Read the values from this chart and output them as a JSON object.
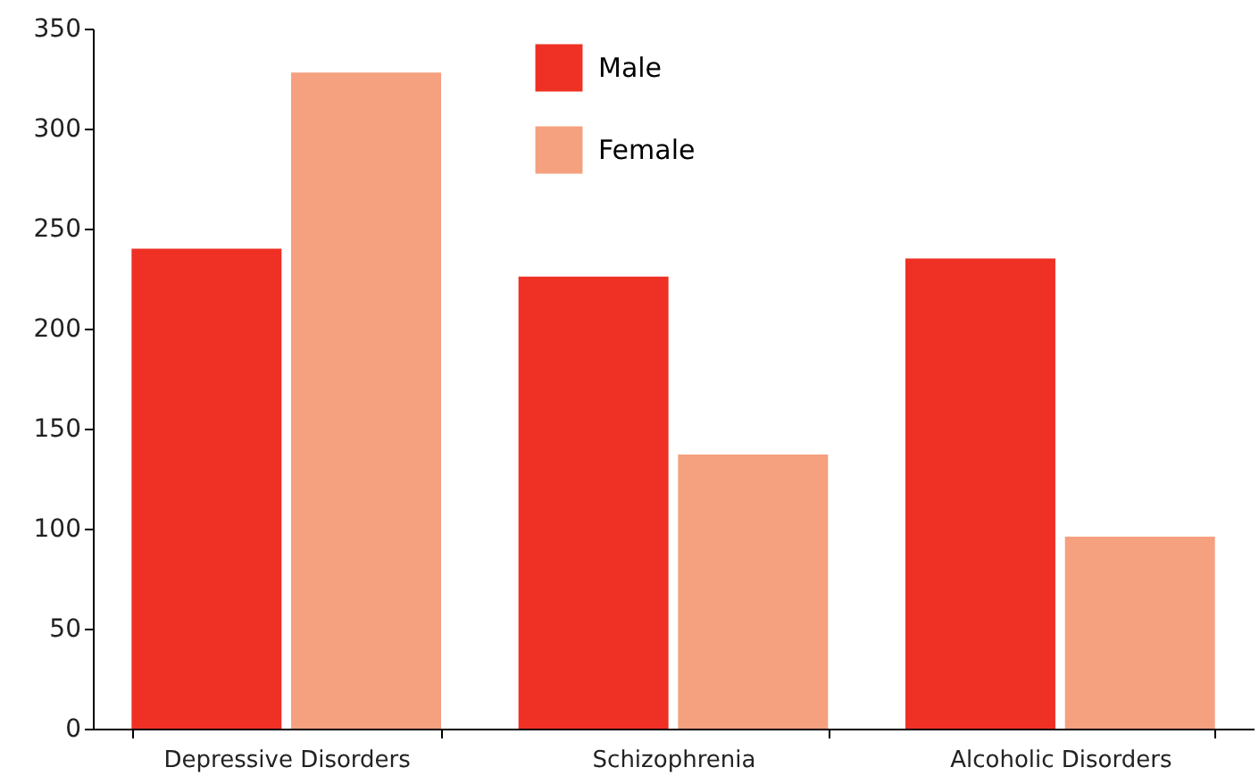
{
  "chart_data": {
    "type": "bar",
    "categories": [
      "Depressive Disorders",
      "Schizophrenia",
      "Alcoholic Disorders"
    ],
    "series": [
      {
        "name": "Male",
        "color": "#ee3124",
        "values": [
          240,
          226,
          235
        ]
      },
      {
        "name": "Female",
        "color": "#f5a07f",
        "values": [
          328,
          137,
          96
        ]
      }
    ],
    "ylim": [
      0,
      350
    ],
    "yticks": [
      0,
      50,
      100,
      150,
      200,
      250,
      300,
      350
    ],
    "grid": false,
    "legend": "top"
  }
}
